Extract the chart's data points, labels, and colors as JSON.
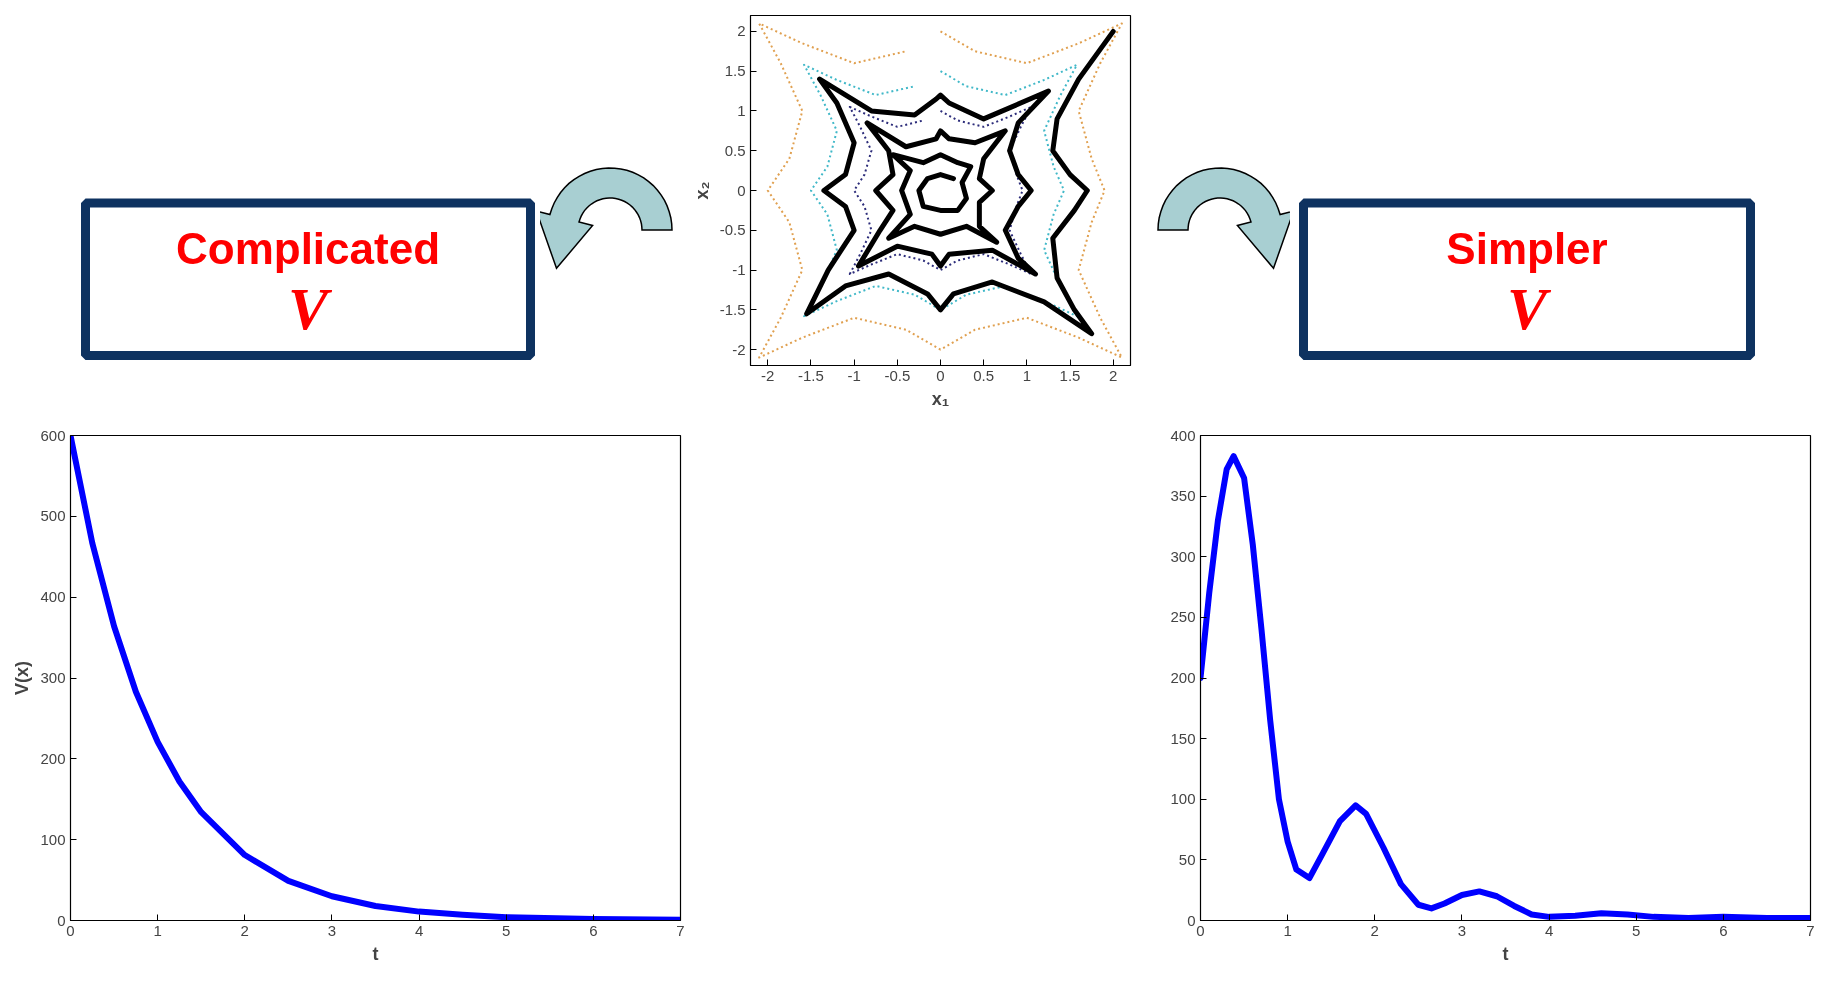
{
  "chart_data": [
    {
      "type": "line",
      "xlabel": "x₁",
      "ylabel": "x₂",
      "xlim": [
        -2.2,
        2.2
      ],
      "ylim": [
        -2.2,
        2.2
      ],
      "xticks": [
        -2,
        -1.5,
        -1,
        -0.5,
        0,
        0.5,
        1,
        1.5,
        2
      ],
      "yticks": [
        -2,
        -1.5,
        -1,
        -0.5,
        0,
        0.5,
        1,
        1.5,
        2
      ],
      "grid": false,
      "marker": "none",
      "series": [
        {
          "color": "#e0a050",
          "line_style": "dotted",
          "x": [
            0,
            0.4,
            1.0,
            1.6,
            2.1,
            1.85,
            1.6,
            1.75,
            1.9,
            1.75,
            1.6,
            1.85,
            2.1,
            1.6,
            1.0,
            0.4,
            0,
            -0.4,
            -1.0,
            -1.6,
            -2.1,
            -1.85,
            -1.6,
            -1.75,
            -2.0,
            -1.75,
            -1.6,
            -1.85,
            -2.1,
            -1.6,
            -1.0,
            -0.4
          ],
          "values": [
            2.0,
            1.75,
            1.6,
            1.85,
            2.1,
            1.6,
            1.0,
            0.4,
            0,
            -0.4,
            -1.0,
            -1.6,
            -2.1,
            -1.85,
            -1.6,
            -1.75,
            -2.0,
            -1.75,
            -1.6,
            -1.85,
            -2.1,
            -1.6,
            -1.0,
            -0.4,
            0,
            0.4,
            1.0,
            1.6,
            2.1,
            1.85,
            1.6,
            1.75
          ]
        },
        {
          "color": "#40b8c8",
          "line_style": "dotted",
          "x": [
            0,
            0.3,
            0.75,
            1.2,
            1.58,
            1.39,
            1.2,
            1.31,
            1.43,
            1.31,
            1.2,
            1.39,
            1.58,
            1.2,
            0.75,
            0.3,
            0,
            -0.3,
            -0.75,
            -1.2,
            -1.58,
            -1.39,
            -1.2,
            -1.31,
            -1.5,
            -1.31,
            -1.2,
            -1.39,
            -1.58,
            -1.2,
            -0.75,
            -0.3
          ],
          "values": [
            1.5,
            1.31,
            1.2,
            1.39,
            1.58,
            1.2,
            0.75,
            0.3,
            0,
            -0.3,
            -0.75,
            -1.2,
            -1.58,
            -1.39,
            -1.2,
            -1.31,
            -1.5,
            -1.31,
            -1.2,
            -1.39,
            -1.58,
            -1.2,
            -0.75,
            -0.3,
            0,
            0.3,
            0.75,
            1.2,
            1.58,
            1.39,
            1.2,
            1.31
          ]
        },
        {
          "color": "#2c2c7a",
          "line_style": "dotted",
          "x": [
            0,
            0.2,
            0.5,
            0.8,
            1.05,
            0.93,
            0.8,
            0.88,
            0.95,
            0.88,
            0.8,
            0.93,
            1.05,
            0.8,
            0.5,
            0.2,
            0,
            -0.2,
            -0.5,
            -0.8,
            -1.05,
            -0.93,
            -0.8,
            -0.88,
            -1.0,
            -0.88,
            -0.8,
            -0.93,
            -1.05,
            -0.8,
            -0.5,
            -0.2
          ],
          "values": [
            1.0,
            0.88,
            0.8,
            0.93,
            1.05,
            0.8,
            0.5,
            0.2,
            0,
            -0.2,
            -0.5,
            -0.8,
            -1.05,
            -0.93,
            -0.8,
            -0.88,
            -1.0,
            -0.88,
            -0.8,
            -0.93,
            -1.05,
            -0.8,
            -0.5,
            -0.2,
            0,
            0.2,
            0.5,
            0.8,
            1.05,
            0.93,
            0.8,
            0.88
          ]
        },
        {
          "color": "#000000",
          "line_style": "solid",
          "x": [
            2.0,
            1.6,
            1.35,
            1.3,
            1.5,
            1.7,
            1.55,
            1.3,
            1.35,
            1.55,
            1.75,
            1.2,
            0.6,
            0.15,
            0,
            -0.15,
            -0.6,
            -1.1,
            -1.55,
            -1.3,
            -1.0,
            -1.1,
            -1.35,
            -1.1,
            -1.0,
            -1.2,
            -1.4,
            -0.8,
            -0.3,
            -0.05,
            0,
            0.1,
            0.5,
            1.25,
            0.9,
            0.8,
            0.9,
            1.05,
            0.9,
            0.75,
            0.9,
            1.1,
            0.6,
            0.1,
            0,
            -0.1,
            -0.5,
            -0.95,
            -0.7,
            -0.55,
            -0.75,
            -0.55,
            -0.6,
            -0.85,
            -0.4,
            -0.05,
            0,
            0.1,
            0.4,
            0.75,
            0.5,
            0.45,
            0.6,
            0.45,
            0.45,
            0.65,
            0.3,
            0,
            -0.3,
            -0.6,
            -0.35,
            -0.45,
            -0.35,
            -0.55,
            -0.2,
            0,
            0.2,
            0.35,
            0.25,
            0.3,
            0.2,
            0,
            -0.2,
            -0.25,
            -0.15,
            0,
            0.15
          ],
          "values": [
            2.0,
            1.4,
            0.9,
            0.5,
            0.2,
            0,
            -0.25,
            -0.6,
            -1.1,
            -1.5,
            -1.8,
            -1.4,
            -1.15,
            -1.3,
            -1.5,
            -1.3,
            -1.05,
            -1.2,
            -1.55,
            -1.0,
            -0.5,
            -0.2,
            0,
            0.2,
            0.6,
            1.1,
            1.4,
            1.0,
            0.95,
            1.15,
            1.2,
            1.1,
            0.9,
            1.25,
            0.85,
            0.5,
            0.2,
            0,
            -0.2,
            -0.5,
            -0.85,
            -1.05,
            -0.75,
            -0.8,
            -0.95,
            -0.8,
            -0.7,
            -0.95,
            -0.5,
            -0.25,
            0,
            0.2,
            0.5,
            0.85,
            0.55,
            0.65,
            0.75,
            0.65,
            0.6,
            0.75,
            0.4,
            0.15,
            0,
            -0.15,
            -0.45,
            -0.65,
            -0.45,
            -0.55,
            -0.45,
            -0.6,
            -0.3,
            0,
            0.25,
            0.45,
            0.35,
            0.45,
            0.35,
            0.3,
            0.1,
            -0.1,
            -0.25,
            -0.25,
            -0.2,
            0,
            0.15,
            0.2,
            0.15
          ]
        }
      ]
    },
    {
      "type": "other",
      "annotations": [
        "Complicated",
        "V"
      ]
    },
    {
      "type": "other",
      "annotations": [
        "Simpler",
        "V"
      ]
    },
    {
      "type": "line",
      "xlabel": "t",
      "ylabel": "V(x)",
      "xlim": [
        0,
        7
      ],
      "ylim": [
        0,
        600
      ],
      "xticks": [
        0,
        1,
        2,
        3,
        4,
        5,
        6,
        7
      ],
      "yticks": [
        0,
        100,
        200,
        300,
        400,
        500,
        600
      ],
      "grid": false,
      "marker": "none",
      "series": [
        {
          "color": "#0000ff",
          "line_style": "solid",
          "x": [
            0,
            0.25,
            0.5,
            0.75,
            1,
            1.25,
            1.5,
            2,
            2.5,
            3,
            3.5,
            4,
            4.5,
            5,
            6,
            7
          ],
          "values": [
            600,
            467,
            364,
            283,
            221,
            172,
            134,
            81,
            49,
            30,
            18,
            11,
            7,
            4,
            2,
            1
          ]
        }
      ]
    },
    {
      "type": "line",
      "xlabel": "t",
      "xlim": [
        0,
        7
      ],
      "ylim": [
        0,
        400
      ],
      "xticks": [
        0,
        1,
        2,
        3,
        4,
        5,
        6,
        7
      ],
      "yticks": [
        0,
        50,
        100,
        150,
        200,
        250,
        300,
        350,
        400
      ],
      "grid": false,
      "marker": "none",
      "series": [
        {
          "color": "#0000ff",
          "line_style": "solid",
          "x": [
            0,
            0.1,
            0.2,
            0.3,
            0.38,
            0.5,
            0.6,
            0.7,
            0.8,
            0.9,
            1.0,
            1.1,
            1.25,
            1.4,
            1.6,
            1.78,
            1.9,
            2.1,
            2.3,
            2.5,
            2.65,
            2.8,
            3.0,
            3.2,
            3.4,
            3.6,
            3.8,
            4.0,
            4.3,
            4.6,
            4.9,
            5.2,
            5.6,
            6,
            6.5,
            7
          ],
          "values": [
            200,
            270,
            330,
            372,
            383,
            365,
            310,
            240,
            165,
            100,
            65,
            42,
            35,
            55,
            82,
            95,
            88,
            60,
            30,
            13,
            10,
            14,
            21,
            24,
            20,
            12,
            5,
            3,
            4,
            6,
            5,
            3,
            2,
            3,
            2,
            2
          ]
        }
      ]
    }
  ]
}
